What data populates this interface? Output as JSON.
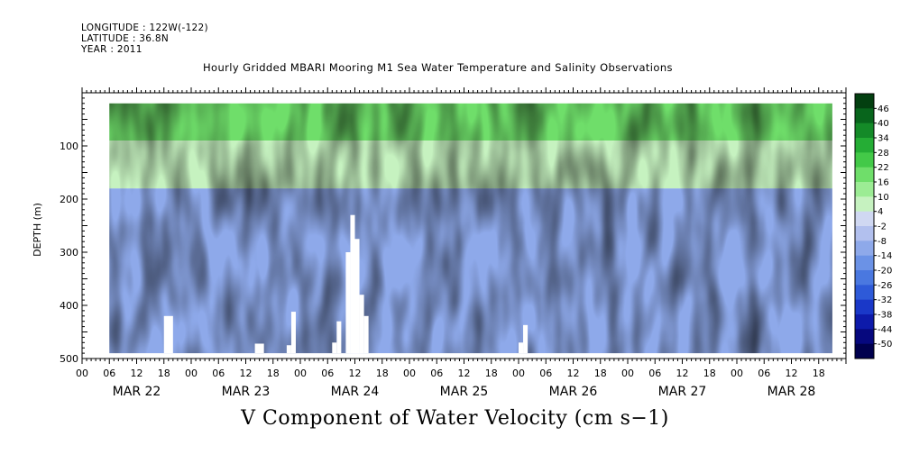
{
  "meta": {
    "longitude": "LONGITUDE : 122W(-122)",
    "latitude": "LATITUDE : 36.8N",
    "year": "YEAR : 2011"
  },
  "chart_data": {
    "type": "heatmap",
    "title": "Hourly Gridded MBARI Mooring M1 Sea Water Temperature and Salinity Observations",
    "variable_title": "V Component of Water Velocity (cm s−1)",
    "ylabel": "DEPTH (m)",
    "x_range_hours": [
      0,
      168
    ],
    "data_start_hour": 6,
    "data_end_hour": 165,
    "ylim": [
      500,
      0
    ],
    "y_ticks": [
      100,
      200,
      300,
      400,
      500
    ],
    "hour_tick_labels": [
      "00",
      "06",
      "12",
      "18",
      "00",
      "06",
      "12",
      "18",
      "00",
      "06",
      "12",
      "18",
      "00",
      "06",
      "12",
      "18",
      "00",
      "06",
      "12",
      "18",
      "00",
      "06",
      "12",
      "18",
      "00",
      "06",
      "12",
      "18"
    ],
    "date_labels": [
      "MAR 22",
      "MAR 23",
      "MAR 24",
      "MAR 25",
      "MAR 26",
      "MAR 27",
      "MAR 28"
    ],
    "colorbar": {
      "levels": [
        -50,
        -44,
        -38,
        -32,
        -26,
        -20,
        -14,
        -8,
        -2,
        4,
        10,
        16,
        22,
        28,
        34,
        40,
        46
      ],
      "labels": [
        "46",
        "40",
        "34",
        "28",
        "22",
        "16",
        "10",
        "4",
        "-2",
        "-8",
        "-14",
        "-20",
        "-26",
        "-32",
        "-38",
        "-44",
        "-50"
      ],
      "colors": [
        "#00004e",
        "#06087e",
        "#0d1aaa",
        "#1a38c8",
        "#2e5ad8",
        "#4a78e0",
        "#6b92e6",
        "#8ea9ea",
        "#b2c0ee",
        "#d0d8f2",
        "#c6f2c0",
        "#9cec94",
        "#6fde6a",
        "#43c948",
        "#25ad35",
        "#148a28",
        "#08651c",
        "#033f10"
      ]
    },
    "bands": [
      {
        "depth_range": [
          20,
          90
        ],
        "value": 20
      },
      {
        "depth_range": [
          90,
          180
        ],
        "value": 6
      },
      {
        "depth_range": [
          180,
          490
        ],
        "value": -12
      }
    ],
    "missing_blocks": [
      {
        "hour_range": [
          18,
          20
        ],
        "depth_range": [
          420,
          490
        ]
      },
      {
        "hour_range": [
          38,
          40
        ],
        "depth_range": [
          472,
          490
        ]
      },
      {
        "hour_range": [
          45,
          46
        ],
        "depth_range": [
          475,
          490
        ]
      },
      {
        "hour_range": [
          46,
          47
        ],
        "depth_range": [
          412,
          490
        ]
      },
      {
        "hour_range": [
          55,
          56
        ],
        "depth_range": [
          470,
          490
        ]
      },
      {
        "hour_range": [
          56,
          57
        ],
        "depth_range": [
          430,
          490
        ]
      },
      {
        "hour_range": [
          58,
          59
        ],
        "depth_range": [
          300,
          490
        ]
      },
      {
        "hour_range": [
          59,
          60
        ],
        "depth_range": [
          230,
          490
        ]
      },
      {
        "hour_range": [
          60,
          61
        ],
        "depth_range": [
          275,
          490
        ]
      },
      {
        "hour_range": [
          61,
          62
        ],
        "depth_range": [
          380,
          490
        ]
      },
      {
        "hour_range": [
          62,
          63
        ],
        "depth_range": [
          420,
          490
        ]
      },
      {
        "hour_range": [
          96,
          97
        ],
        "depth_range": [
          470,
          490
        ]
      },
      {
        "hour_range": [
          97,
          98
        ],
        "depth_range": [
          437,
          490
        ]
      }
    ]
  }
}
